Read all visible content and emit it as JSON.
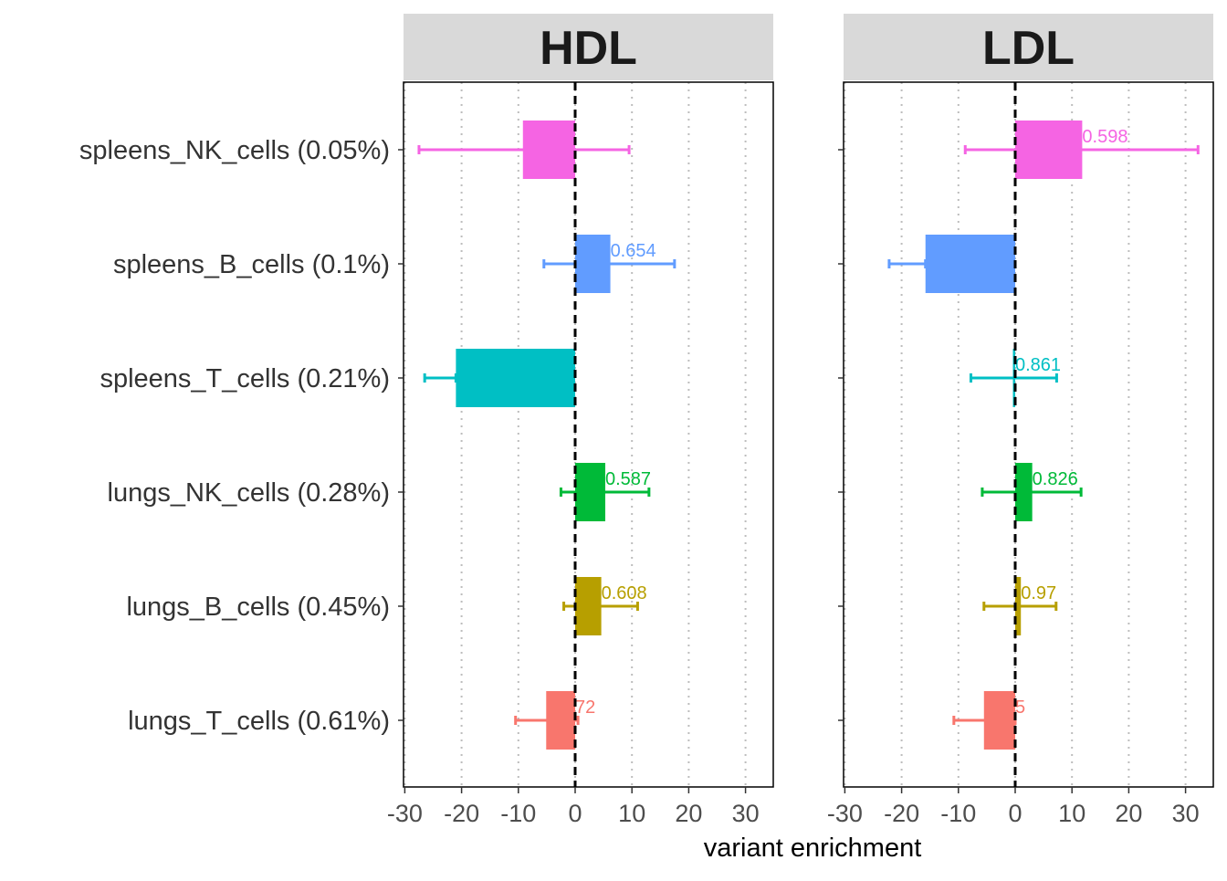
{
  "chart_data": {
    "type": "bar",
    "orientation": "horizontal",
    "xlabel": "variant enrichment",
    "xlim": [
      -30,
      35
    ],
    "xticks": [
      -30,
      -20,
      -10,
      0,
      10,
      20,
      30
    ],
    "x_tick_labels": [
      "-30",
      "-20",
      "-10",
      "0",
      "10",
      "20",
      "30"
    ],
    "reference_line": 0,
    "grid": "vertical dotted",
    "legend": "none",
    "categories": [
      "spleens_NK_cells (0.05%)",
      "spleens_B_cells (0.1%)",
      "spleens_T_cells (0.21%)",
      "lungs_NK_cells (0.28%)",
      "lungs_B_cells (0.45%)",
      "lungs_T_cells (0.61%)"
    ],
    "colors": [
      "#F564E3",
      "#619CFF",
      "#00BFC4",
      "#00BA38",
      "#B79F00",
      "#F8766D"
    ],
    "panels": [
      {
        "title": "HDL",
        "values": [
          -9.2,
          6.2,
          -21.0,
          5.3,
          4.6,
          -5.1
        ],
        "err_low": [
          -27.5,
          -5.5,
          -26.5,
          -2.5,
          -2.0,
          -10.5
        ],
        "err_high": [
          9.5,
          17.5,
          -21.0,
          13.0,
          11.0,
          0.5
        ],
        "labels": [
          "",
          "0.654",
          "",
          "0.587",
          "0.608",
          "72"
        ]
      },
      {
        "title": "LDL",
        "values": [
          11.8,
          -15.8,
          -0.4,
          3.0,
          1.0,
          -5.5
        ],
        "err_low": [
          -8.8,
          -22.2,
          -7.8,
          -5.8,
          -5.5,
          -10.8
        ],
        "err_high": [
          32.2,
          -15.8,
          7.3,
          11.6,
          7.2,
          0.0
        ],
        "labels": [
          "0.598",
          "",
          "0.861",
          "0.826",
          "0.97",
          "5"
        ]
      }
    ]
  }
}
